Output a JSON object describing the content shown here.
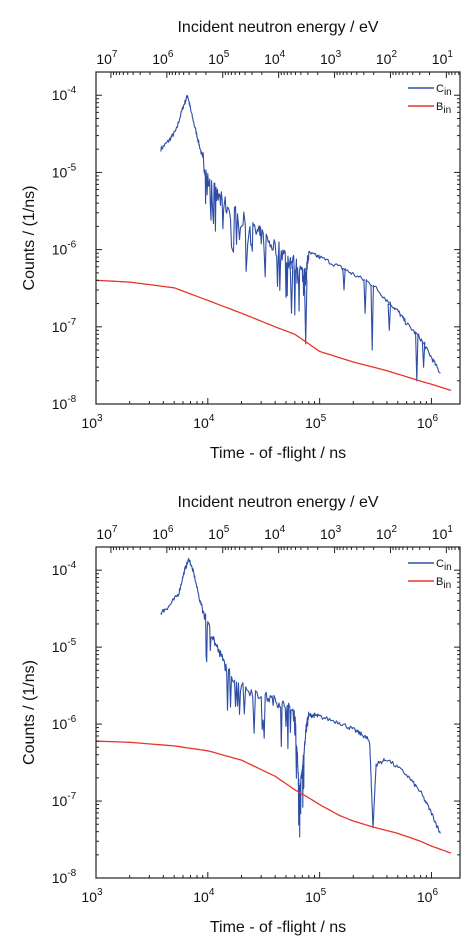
{
  "chart_data": [
    {
      "type": "line",
      "title": "",
      "xlabel": "Time - of -flight / ns",
      "x2label": "Incident neutron energy / eV",
      "ylabel": "Counts / (1/ns)",
      "xscale": "log",
      "yscale": "log",
      "xlim": [
        1000,
        1800000
      ],
      "ylim": [
        1e-08,
        0.0002
      ],
      "x_ticks": [
        "10^3",
        "10^4",
        "10^5",
        "10^6"
      ],
      "x2_ticks": [
        "10^7",
        "10^6",
        "10^5",
        "10^4",
        "10^3",
        "10^2",
        "10^1"
      ],
      "y_ticks": [
        "10^-8",
        "10^-7",
        "10^-6",
        "10^-5",
        "10^-4"
      ],
      "grid": false,
      "legend_position": "top-right",
      "series": [
        {
          "name": "C_in",
          "color": "#2e4da6",
          "x": [
            3800,
            4500,
            5200,
            6000,
            6600,
            7100,
            8000,
            9000,
            10000,
            12000,
            15000,
            20000,
            25000,
            30000,
            40000,
            50000,
            60000,
            70000,
            75000,
            80000,
            100000,
            150000,
            200000,
            300000,
            400000,
            500000,
            600000,
            800000,
            1000000,
            1200000
          ],
          "y": [
            2e-05,
            2.6e-05,
            3.5e-05,
            7e-05,
            0.0001,
            6e-05,
            3e-05,
            1.5e-05,
            9e-06,
            5e-06,
            3.5e-06,
            2.5e-06,
            1.8e-06,
            1.5e-06,
            1.1e-06,
            8e-07,
            6.5e-07,
            5e-07,
            4.5e-07,
            9e-07,
            8e-07,
            6e-07,
            4.8e-07,
            3.5e-07,
            2.2e-07,
            1.6e-07,
            1.1e-07,
            7e-08,
            4e-08,
            2.5e-08
          ]
        },
        {
          "name": "B_in",
          "color": "#e8352a",
          "x": [
            1000,
            2000,
            5000,
            10000,
            20000,
            40000,
            60000,
            80000,
            100000,
            200000,
            400000,
            700000,
            1000000,
            1500000
          ],
          "y": [
            4e-07,
            3.8e-07,
            3.2e-07,
            2.2e-07,
            1.5e-07,
            1e-07,
            8e-08,
            6e-08,
            4.8e-08,
            3.5e-08,
            2.7e-08,
            2.1e-08,
            1.8e-08,
            1.5e-08
          ]
        }
      ],
      "dips": [
        {
          "x": 56000,
          "y": 1.5e-07
        },
        {
          "x": 75000,
          "y": 6e-08
        },
        {
          "x": 165000,
          "y": 3e-07
        },
        {
          "x": 255000,
          "y": 1.5e-07
        },
        {
          "x": 295000,
          "y": 5e-08
        },
        {
          "x": 420000,
          "y": 9e-08
        },
        {
          "x": 740000,
          "y": 2e-08
        },
        {
          "x": 850000,
          "y": 3e-08
        }
      ]
    },
    {
      "type": "line",
      "title": "",
      "xlabel": "Time - of -flight / ns",
      "x2label": "Incident neutron energy / eV",
      "ylabel": "Counts / (1/ns)",
      "xscale": "log",
      "yscale": "log",
      "xlim": [
        1000,
        1800000
      ],
      "ylim": [
        1e-08,
        0.0002
      ],
      "x_ticks": [
        "10^3",
        "10^4",
        "10^5",
        "10^6"
      ],
      "x2_ticks": [
        "10^7",
        "10^6",
        "10^5",
        "10^4",
        "10^3",
        "10^2",
        "10^1"
      ],
      "y_ticks": [
        "10^-8",
        "10^-7",
        "10^-6",
        "10^-5",
        "10^-4"
      ],
      "grid": false,
      "legend_position": "top-right",
      "series": [
        {
          "name": "C_in",
          "color": "#2e4da6",
          "x": [
            3800,
            4500,
            5500,
            6200,
            6800,
            7500,
            8500,
            10000,
            12000,
            15000,
            20000,
            30000,
            40000,
            50000,
            60000,
            63000,
            66000,
            70000,
            75000,
            80000,
            90000,
            100000,
            150000,
            200000,
            250000,
            280000,
            300000,
            320000,
            400000,
            600000,
            800000,
            1000000,
            1200000
          ],
          "y": [
            2.8e-05,
            3.4e-05,
            5e-05,
            0.0001,
            0.00014,
            9e-05,
            4e-05,
            2e-05,
            1e-05,
            5e-06,
            3e-06,
            2.4e-06,
            2e-06,
            1.7e-06,
            1.4e-06,
            4e-07,
            1.3e-07,
            2.5e-07,
            8e-07,
            1.3e-06,
            1.3e-06,
            1.25e-06,
            1.05e-06,
            8.5e-07,
            7e-07,
            6e-07,
            4.5e-08,
            3e-07,
            3.5e-07,
            2.2e-07,
            1.3e-07,
            7e-08,
            3.8e-08
          ]
        },
        {
          "name": "B_in",
          "color": "#e8352a",
          "x": [
            1000,
            2000,
            5000,
            10000,
            20000,
            40000,
            60000,
            80000,
            100000,
            150000,
            200000,
            300000,
            500000,
            800000,
            1000000,
            1500000
          ],
          "y": [
            6e-07,
            5.8e-07,
            5.2e-07,
            4.5e-07,
            3.4e-07,
            2.1e-07,
            1.4e-07,
            1.1e-07,
            9e-08,
            6.5e-08,
            5.5e-08,
            4.6e-08,
            3.8e-08,
            3e-08,
            2.6e-08,
            2.1e-08
          ]
        }
      ],
      "dips": []
    }
  ]
}
